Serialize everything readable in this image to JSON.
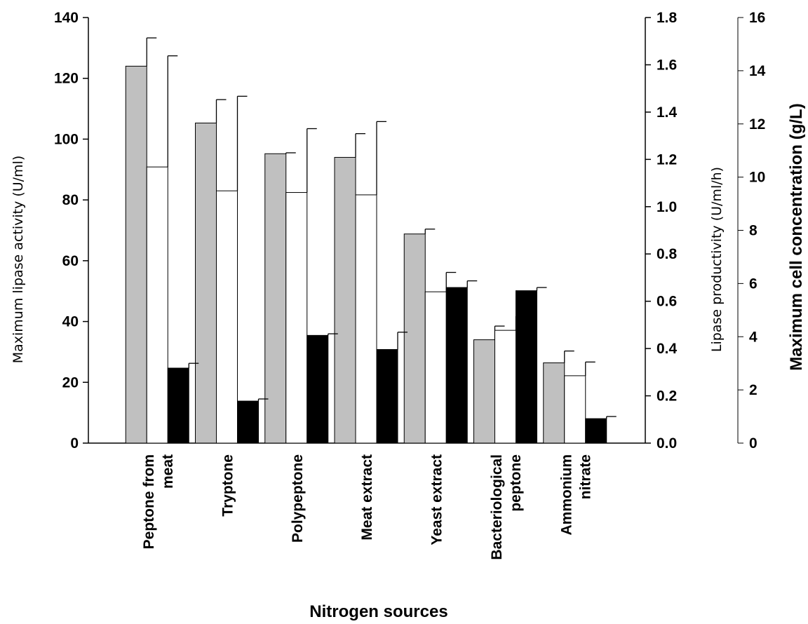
{
  "chart_data": {
    "type": "bar",
    "categories": [
      [
        "Peptone from",
        "meat"
      ],
      [
        "Tryptone"
      ],
      [
        "Polypeptone"
      ],
      [
        "Meat extract"
      ],
      [
        "Yeast extract"
      ],
      [
        "Bacteriological",
        "peptone"
      ],
      [
        "Ammonium",
        "nitrate"
      ]
    ],
    "xlabel": "Nitrogen sources",
    "axes": {
      "left": {
        "label": "Maximum lipase activity (U/ml)",
        "ylim": [
          0,
          140
        ],
        "ticks": [
          "0",
          "20",
          "40",
          "60",
          "80",
          "100",
          "120",
          "140"
        ]
      },
      "right1": {
        "label": "Lipase productivity (U/ml/h)",
        "ylim": [
          0,
          1.8
        ],
        "ticks": [
          "0.0",
          "0.2",
          "0.4",
          "0.6",
          "0.8",
          "1.0",
          "1.2",
          "1.4",
          "1.6",
          "1.8"
        ]
      },
      "right2": {
        "label": "Maximum cell concentration (g/L)",
        "ylim": [
          0,
          16
        ],
        "ticks": [
          "0",
          "2",
          "4",
          "6",
          "8",
          "10",
          "12",
          "14",
          "16"
        ]
      }
    },
    "series": [
      {
        "axis": "left",
        "color": "#c0c0c0",
        "values": [
          124,
          105.3,
          95.2,
          94,
          68.8,
          34,
          26.4
        ],
        "errors": [
          9.3,
          7.7,
          0.3,
          7.8,
          1.6,
          4.5,
          3.9
        ]
      },
      {
        "axis": "right1",
        "color": "#ffffff",
        "values": [
          1.168,
          1.067,
          1.06,
          1.05,
          0.64,
          0.477,
          0.285
        ],
        "errors": [
          0.47,
          0.4,
          0.27,
          0.31,
          0.082,
          0.06,
          0.058
        ]
      },
      {
        "axis": "right2",
        "color": "#000000",
        "values": [
          2.82,
          1.58,
          4.05,
          3.52,
          5.85,
          5.73,
          0.92
        ],
        "errors": [
          0.18,
          0.08,
          0.06,
          0.65,
          0.25,
          0.12,
          0.08
        ]
      }
    ],
    "grid": false,
    "legend": "none"
  }
}
